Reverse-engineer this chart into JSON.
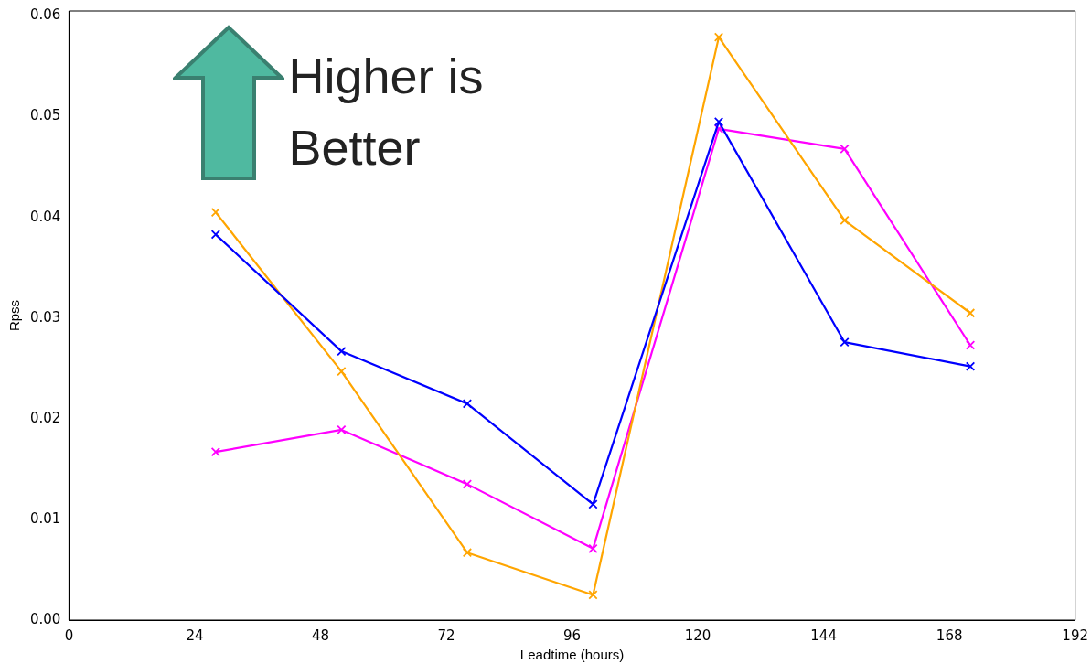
{
  "chart_data": {
    "type": "line",
    "xlabel": "Leadtime (hours)",
    "ylabel": "Rpss",
    "x": [
      28,
      52,
      76,
      100,
      124,
      148,
      172
    ],
    "series": [
      {
        "color": "#0000ff",
        "values": [
          0.0383,
          0.0267,
          0.0215,
          0.0115,
          0.0495,
          0.0276,
          0.0252
        ]
      },
      {
        "color": "#ffa500",
        "values": [
          0.0405,
          0.0247,
          0.0067,
          0.0025,
          0.0579,
          0.0397,
          0.0305
        ]
      },
      {
        "color": "#ff00ff",
        "values": [
          0.0167,
          0.0189,
          0.0135,
          0.0071,
          0.0488,
          0.0468,
          0.0273
        ]
      }
    ],
    "xlim": [
      0,
      192
    ],
    "xticks": [
      0,
      24,
      48,
      72,
      96,
      120,
      144,
      168,
      192
    ],
    "ylim": [
      0,
      0.0605
    ],
    "yticks": [
      {
        "value": 0,
        "label": "0.00"
      },
      {
        "value": 0.01,
        "label": "0.01"
      },
      {
        "value": 0.02,
        "label": "0.02"
      },
      {
        "value": 0.03,
        "label": "0.03"
      },
      {
        "value": 0.04,
        "label": "0.04"
      },
      {
        "value": 0.05,
        "label": "0.05"
      },
      {
        "value": 0.06,
        "label": "0.06"
      }
    ],
    "grid": false,
    "legend": false,
    "marker": "cross",
    "line_style": "solid",
    "annotations": [
      "Higher is Better"
    ]
  }
}
